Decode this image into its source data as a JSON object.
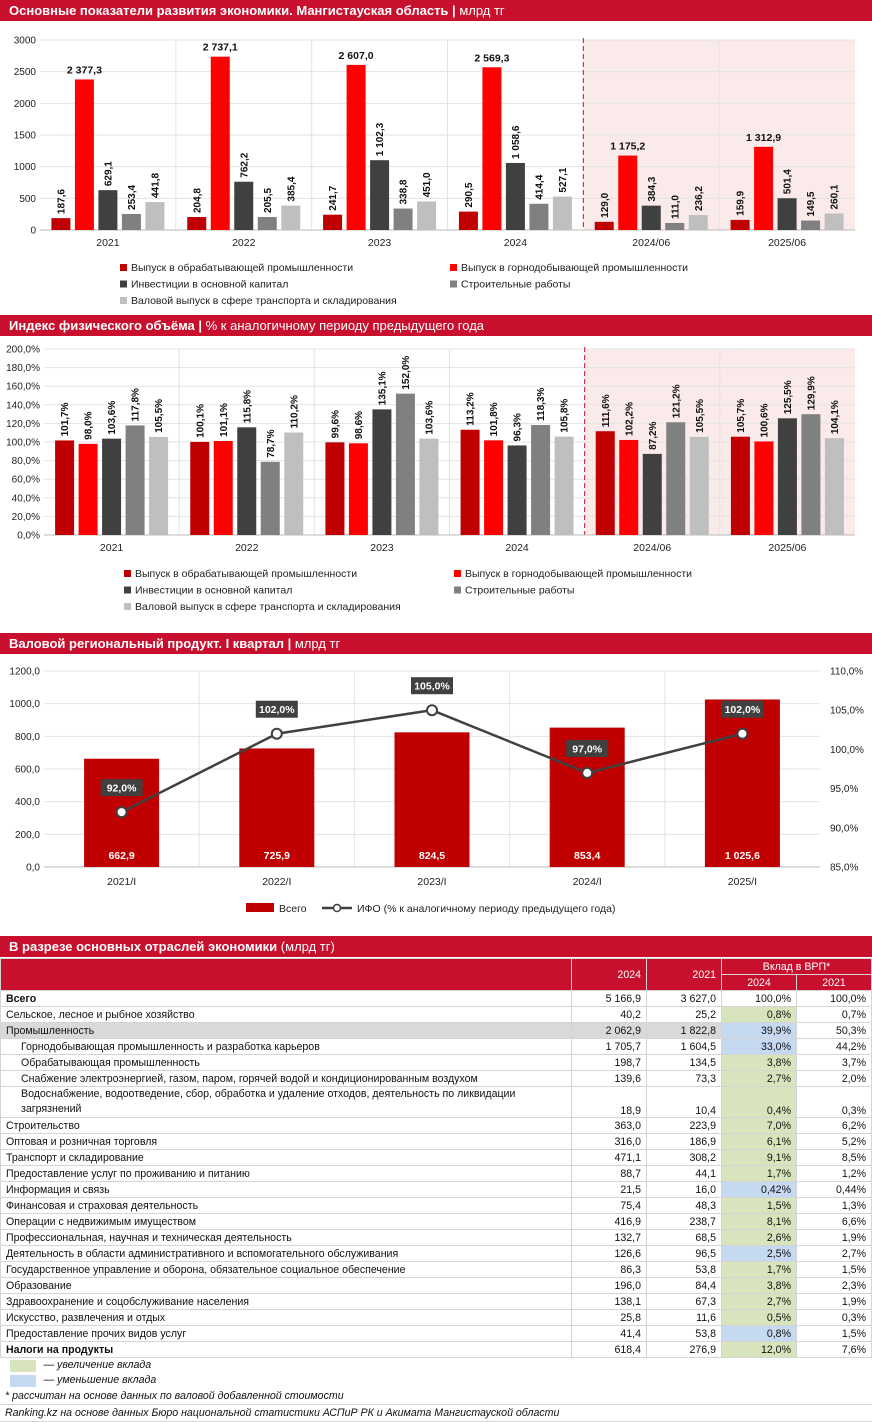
{
  "section1": {
    "title": "Основные показатели развития экономики. Мангистауская область",
    "unit": "млрд тг"
  },
  "section2": {
    "title": "Индекс физического объёма",
    "unit": "% к аналогичному периоду предыдущего года"
  },
  "section3": {
    "title": "Валовой региональный продукт. I квартал",
    "unit": "млрд тг"
  },
  "section4": {
    "title": "В разрезе основных отраслей экономики",
    "unit": "(млрд тг)"
  },
  "chart_data": [
    {
      "type": "bar",
      "title": "Основные показатели развития экономики. Мангистауская область | млрд тг",
      "categories": [
        "2021",
        "2022",
        "2023",
        "2024",
        "2024/06",
        "2025/06"
      ],
      "ylim": [
        0,
        3000
      ],
      "yticks": [
        "0",
        "500",
        "1000",
        "1500",
        "2000",
        "2500",
        "3000"
      ],
      "yticks_values": [
        0,
        500,
        1000,
        1500,
        2000,
        2500,
        3000
      ],
      "series": [
        {
          "name": "Выпуск в обрабатывающей промышленности",
          "color": "#c00000",
          "values": [
            187.6,
            204.8,
            241.7,
            290.5,
            129.0,
            159.9
          ],
          "labels": [
            "187,6",
            "204,8",
            "241,7",
            "290,5",
            "129,0",
            "159,9"
          ]
        },
        {
          "name": "Выпуск в горнодобывающей промышленности",
          "color": "#ff0000",
          "values": [
            2377.3,
            2737.1,
            2607.0,
            2569.3,
            1175.2,
            1312.9
          ],
          "labels": [
            "2 377,3",
            "2 737,1",
            "2 607,0",
            "2 569,3",
            "1 175,2",
            "1 312,9"
          ]
        },
        {
          "name": "Инвестиции в основной капитал",
          "color": "#404040",
          "values": [
            629.1,
            762.2,
            1102.3,
            1058.6,
            384.3,
            501.4
          ],
          "labels": [
            "629,1",
            "762,2",
            "1 102,3",
            "1 058,6",
            "384,3",
            "501,4"
          ]
        },
        {
          "name": "Строительные работы",
          "color": "#808080",
          "values": [
            253.4,
            205.5,
            338.8,
            414.4,
            111.0,
            149.5
          ],
          "labels": [
            "253,4",
            "205,5",
            "338,8",
            "414,4",
            "111,0",
            "149,5"
          ]
        },
        {
          "name": "Валовой выпуск в сфере транспорта и складирования",
          "color": "#bfbfbf",
          "values": [
            441.8,
            385.4,
            451.0,
            527.1,
            236.2,
            260.1
          ],
          "labels": [
            "441,8",
            "385,4",
            "451,0",
            "527,1",
            "236,2",
            "260,1"
          ]
        }
      ],
      "grid": true,
      "legend_placement": "bottom"
    },
    {
      "type": "bar",
      "title": "Индекс физического объёма | % к аналогичному периоду предыдущего года",
      "categories": [
        "2021",
        "2022",
        "2023",
        "2024",
        "2024/06",
        "2025/06"
      ],
      "ylim": [
        0,
        200
      ],
      "yticks": [
        "0,0%",
        "20,0%",
        "40,0%",
        "60,0%",
        "80,0%",
        "100,0%",
        "120,0%",
        "140,0%",
        "160,0%",
        "180,0%",
        "200,0%"
      ],
      "yticks_values": [
        0,
        20,
        40,
        60,
        80,
        100,
        120,
        140,
        160,
        180,
        200
      ],
      "series": [
        {
          "name": "Выпуск в обрабатывающей промышленности",
          "color": "#c00000",
          "values": [
            101.7,
            100.1,
            99.6,
            113.2,
            111.6,
            105.7
          ],
          "labels": [
            "101,7%",
            "100,1%",
            "99,6%",
            "113,2%",
            "111,6%",
            "105,7%"
          ]
        },
        {
          "name": "Выпуск в горнодобывающей промышленности",
          "color": "#ff0000",
          "values": [
            98.0,
            101.1,
            98.6,
            101.8,
            102.2,
            100.6
          ],
          "labels": [
            "98,0%",
            "101,1%",
            "98,6%",
            "101,8%",
            "102,2%",
            "100,6%"
          ]
        },
        {
          "name": "Инвестиции в основной капитал",
          "color": "#404040",
          "values": [
            103.6,
            115.8,
            135.1,
            96.3,
            87.2,
            125.5
          ],
          "labels": [
            "103,6%",
            "115,8%",
            "135,1%",
            "96,3%",
            "87,2%",
            "125,5%"
          ]
        },
        {
          "name": "Строительные работы",
          "color": "#808080",
          "values": [
            117.8,
            78.7,
            152.0,
            118.3,
            121.2,
            129.9
          ],
          "labels": [
            "117,8%",
            "78,7%",
            "152,0%",
            "118,3%",
            "121,2%",
            "129,9%"
          ]
        },
        {
          "name": "Валовой выпуск в сфере транспорта и складирования",
          "color": "#bfbfbf",
          "values": [
            105.5,
            110.2,
            103.6,
            105.8,
            105.5,
            104.1
          ],
          "labels": [
            "105,5%",
            "110,2%",
            "103,6%",
            "105,8%",
            "105,5%",
            "104,1%"
          ]
        }
      ],
      "grid": true,
      "legend_placement": "bottom"
    },
    {
      "type": "bar",
      "title": "Валовой региональный продукт. I квартал | млрд тг",
      "categories": [
        "2021/I",
        "2022/I",
        "2023/I",
        "2024/I",
        "2025/I"
      ],
      "ylim": [
        0,
        1200
      ],
      "yticks": [
        "0,0",
        "200,0",
        "400,0",
        "600,0",
        "800,0",
        "1000,0",
        "1200,0"
      ],
      "yticks_values": [
        0,
        200,
        400,
        600,
        800,
        1000,
        1200
      ],
      "y2lim": [
        85,
        110
      ],
      "y2ticks": [
        "85,0%",
        "90,0%",
        "95,0%",
        "100,0%",
        "105,0%",
        "110,0%"
      ],
      "y2ticks_values": [
        85,
        90,
        95,
        100,
        105,
        110
      ],
      "series": [
        {
          "name": "Всего",
          "type": "bar",
          "color": "#c00000",
          "values": [
            662.9,
            725.9,
            824.5,
            853.4,
            1025.6
          ],
          "labels": [
            "662,9",
            "725,9",
            "824,5",
            "853,4",
            "1 025,6"
          ]
        },
        {
          "name": "ИФО (% к аналогичному периоду предыдущего года)",
          "type": "line",
          "axis": "right",
          "color": "#404040",
          "values": [
            92.0,
            102.0,
            105.0,
            97.0,
            102.0
          ],
          "labels": [
            "92,0%",
            "102,0%",
            "105,0%",
            "97,0%",
            "102,0%"
          ]
        }
      ],
      "grid": true,
      "legend_placement": "bottom"
    },
    {
      "type": "table",
      "title": "В разрезе основных отраслей экономики (млрд тг)",
      "columns": [
        "2024",
        "2021"
      ],
      "group_header": "Вклад в ВРП*",
      "sub_columns": [
        "2024",
        "2021"
      ],
      "rows": [
        {
          "label": "Всего",
          "bold": true,
          "indent": 0,
          "v2024": "5 166,9",
          "v2021": "3 627,0",
          "s2024": "100,0%",
          "s2021": "100,0%",
          "mark": ""
        },
        {
          "label": "Сельское, лесное и рыбное хозяйство",
          "indent": 0,
          "v2024": "40,2",
          "v2021": "25,2",
          "s2024": "0,8%",
          "s2021": "0,7%",
          "mark": "inc"
        },
        {
          "label": "Промышленность",
          "indent": 0,
          "highlight": true,
          "v2024": "2 062,9",
          "v2021": "1 822,8",
          "s2024": "39,9%",
          "s2021": "50,3%",
          "mark": "dec"
        },
        {
          "label": "Горнодобывающая промышленность и разработка карьеров",
          "indent": 1,
          "v2024": "1 705,7",
          "v2021": "1 604,5",
          "s2024": "33,0%",
          "s2021": "44,2%",
          "mark": "dec"
        },
        {
          "label": "Обрабатывающая промышленность",
          "indent": 1,
          "v2024": "198,7",
          "v2021": "134,5",
          "s2024": "3,8%",
          "s2021": "3,7%",
          "mark": "inc"
        },
        {
          "label": "Снабжение электроэнергией, газом, паром, горячей водой и кондиционированным воздухом",
          "indent": 1,
          "v2024": "139,6",
          "v2021": "73,3",
          "s2024": "2,7%",
          "s2021": "2,0%",
          "mark": "inc"
        },
        {
          "label": "Водоснабжение, водоотведение, сбор, обработка и удаление отходов, деятельность по ликвидации загрязнений",
          "indent": 1,
          "tall": true,
          "v2024": "18,9",
          "v2021": "10,4",
          "s2024": "0,4%",
          "s2021": "0,3%",
          "mark": "inc"
        },
        {
          "label": "Строительство",
          "indent": 0,
          "v2024": "363,0",
          "v2021": "223,9",
          "s2024": "7,0%",
          "s2021": "6,2%",
          "mark": "inc"
        },
        {
          "label": "Оптовая и розничная торговля",
          "indent": 0,
          "v2024": "316,0",
          "v2021": "186,9",
          "s2024": "6,1%",
          "s2021": "5,2%",
          "mark": "inc"
        },
        {
          "label": "Транспорт и складирование",
          "indent": 0,
          "v2024": "471,1",
          "v2021": "308,2",
          "s2024": "9,1%",
          "s2021": "8,5%",
          "mark": "inc"
        },
        {
          "label": "Предоставление услуг по проживанию и питанию",
          "indent": 0,
          "v2024": "88,7",
          "v2021": "44,1",
          "s2024": "1,7%",
          "s2021": "1,2%",
          "mark": "inc"
        },
        {
          "label": "Информация и связь",
          "indent": 0,
          "v2024": "21,5",
          "v2021": "16,0",
          "s2024": "0,42%",
          "s2021": "0,44%",
          "mark": "dec"
        },
        {
          "label": "Финансовая и страховая деятельность",
          "indent": 0,
          "v2024": "75,4",
          "v2021": "48,3",
          "s2024": "1,5%",
          "s2021": "1,3%",
          "mark": "inc"
        },
        {
          "label": "Операции с недвижимым имуществом",
          "indent": 0,
          "v2024": "416,9",
          "v2021": "238,7",
          "s2024": "8,1%",
          "s2021": "6,6%",
          "mark": "inc"
        },
        {
          "label": "Профессиональная, научная и техническая деятельность",
          "indent": 0,
          "v2024": "132,7",
          "v2021": "68,5",
          "s2024": "2,6%",
          "s2021": "1,9%",
          "mark": "inc"
        },
        {
          "label": "Деятельность в области административного и вспомогательного обслуживания",
          "indent": 0,
          "v2024": "126,6",
          "v2021": "96,5",
          "s2024": "2,5%",
          "s2021": "2,7%",
          "mark": "dec"
        },
        {
          "label": "Государственное управление и оборона, обязательное социальное обеспечение",
          "indent": 0,
          "v2024": "86,3",
          "v2021": "53,8",
          "s2024": "1,7%",
          "s2021": "1,5%",
          "mark": "inc"
        },
        {
          "label": "Образование",
          "indent": 0,
          "v2024": "196,0",
          "v2021": "84,4",
          "s2024": "3,8%",
          "s2021": "2,3%",
          "mark": "inc"
        },
        {
          "label": "Здравоохранение и соцобслуживание населения",
          "indent": 0,
          "v2024": "138,1",
          "v2021": "67,3",
          "s2024": "2,7%",
          "s2021": "1,9%",
          "mark": "inc"
        },
        {
          "label": "Искусство, развлечения и отдых",
          "indent": 0,
          "v2024": "25,8",
          "v2021": "11,6",
          "s2024": "0,5%",
          "s2021": "0,3%",
          "mark": "inc"
        },
        {
          "label": "Предоставление прочих видов услуг",
          "indent": 0,
          "v2024": "41,4",
          "v2021": "53,8",
          "s2024": "0,8%",
          "s2021": "1,5%",
          "mark": "dec"
        },
        {
          "label": "Налоги на продукты",
          "bold": true,
          "indent": 0,
          "v2024": "618,4",
          "v2021": "276,9",
          "s2024": "12,0%",
          "s2021": "7,6%",
          "mark": "inc"
        }
      ]
    }
  ],
  "table_legend": {
    "increase": "— увеличение вклада",
    "decrease": "— уменьшение вклада"
  },
  "footnote": "* рассчитан на основе данных по валовой добавленной стоимости",
  "source": "Ranking.kz на основе данных Бюро национальной статистики АСПиР РК и Акимата Мангистауской области"
}
